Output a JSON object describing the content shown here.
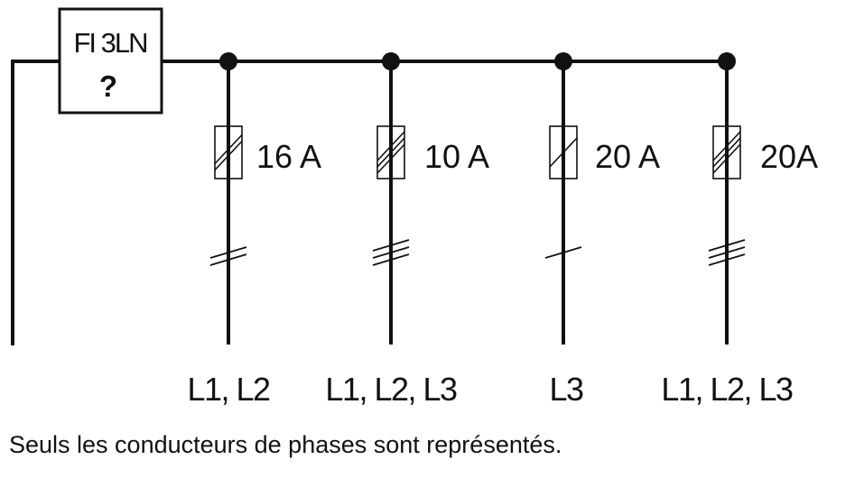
{
  "device": {
    "line1": "FI 3LN",
    "line2": "?"
  },
  "branches": [
    {
      "rating": "16 A",
      "phases": "L1, L2",
      "conductors": 2
    },
    {
      "rating": "10 A",
      "phases": "L1, L2, L3",
      "conductors": 3
    },
    {
      "rating": "20 A",
      "phases": "L3",
      "conductors": 1
    },
    {
      "rating": "20A",
      "phases": "L1, L2, L3",
      "conductors": 3
    }
  ],
  "caption": "Seuls les conducteurs de phases sont représentés."
}
